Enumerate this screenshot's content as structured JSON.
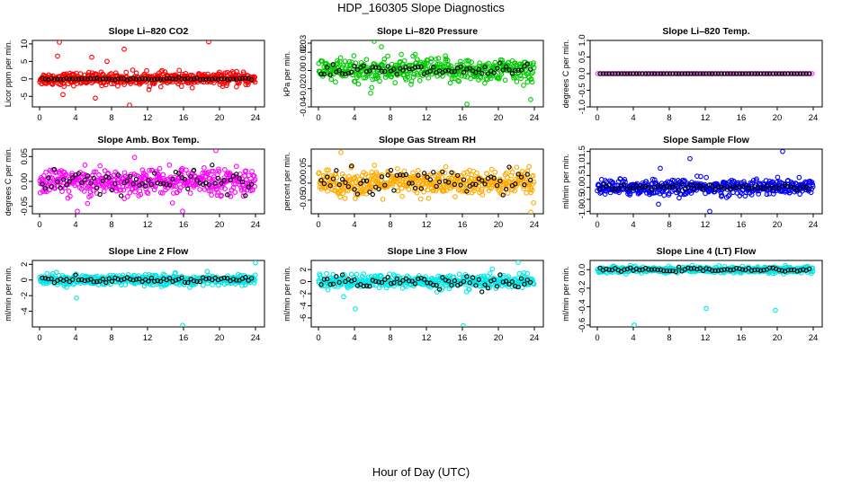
{
  "title": "HDP_160305  Slope Diagnostics",
  "xlabel": "Hour of Day (UTC)",
  "x_ticks": [
    0,
    4,
    8,
    12,
    16,
    20,
    24
  ],
  "chart_data": [
    {
      "type": "scatter",
      "title": "Slope Li–820 CO2",
      "ylabel": "Licor ppm per min.",
      "xlim": [
        0,
        24
      ],
      "ylim": [
        -8,
        11
      ],
      "yticks": [
        -5,
        0,
        5,
        10
      ],
      "ytick_labels": [
        "-5",
        "0",
        "5",
        "10"
      ],
      "color": "#ff0000",
      "spread": 1.6,
      "outliers": [
        [
          2.2,
          10.5
        ],
        [
          2.0,
          6.5
        ],
        [
          9.4,
          8.5
        ],
        [
          18.8,
          10.6
        ],
        [
          5.8,
          6.2
        ],
        [
          7.5,
          5.0
        ],
        [
          10.0,
          -7.5
        ],
        [
          2.6,
          -4.5
        ],
        [
          6.2,
          -5.5
        ]
      ],
      "black_spread": 0.25
    },
    {
      "type": "scatter",
      "title": "Slope Li–820 Pressure",
      "ylabel": "kPa per min.",
      "xlim": [
        0,
        24
      ],
      "ylim": [
        -0.04,
        0.033
      ],
      "yticks": [
        -0.04,
        -0.02,
        0.0,
        0.02,
        0.03
      ],
      "ytick_labels": [
        "-0.04",
        "-0.02",
        "0.00",
        "0.02",
        "0.03"
      ],
      "color": "#00cc00",
      "spread": 0.012,
      "outliers": [
        [
          6.2,
          0.032
        ],
        [
          5.8,
          -0.025
        ],
        [
          16.5,
          -0.037
        ],
        [
          23.6,
          -0.032
        ],
        [
          7.0,
          0.026
        ]
      ],
      "black_spread": 0.006
    },
    {
      "type": "scatter",
      "title": "Slope Li–820 Temp.",
      "ylabel": "degrees C per min.",
      "xlim": [
        0,
        24
      ],
      "ylim": [
        -1,
        1
      ],
      "yticks": [
        -1,
        -0.5,
        0,
        0.5,
        1
      ],
      "ytick_labels": [
        "-1.0",
        "-0.5",
        "0.0",
        "0.5",
        "1.0"
      ],
      "color": "#e040e0",
      "spread": 0.0,
      "outliers": [],
      "black_spread": 0.0
    },
    {
      "type": "scatter",
      "title": "Slope Amb. Box Temp.",
      "ylabel": "degrees C per min.",
      "xlim": [
        0,
        24
      ],
      "ylim": [
        -0.065,
        0.065
      ],
      "yticks": [
        -0.05,
        0.0,
        0.05
      ],
      "ytick_labels": [
        "-0.05",
        "0.00",
        "0.05"
      ],
      "color": "#ff00ff",
      "spread": 0.025,
      "outliers": [
        [
          4.2,
          -0.06
        ],
        [
          15.9,
          -0.06
        ],
        [
          19.6,
          0.062
        ]
      ],
      "black_spread": 0.02
    },
    {
      "type": "scatter",
      "title": "Slope Gas Stream RH",
      "ylabel": "percent per min.",
      "xlim": [
        0,
        24
      ],
      "ylim": [
        -0.09,
        0.1
      ],
      "yticks": [
        -0.05,
        0.0,
        0.05
      ],
      "ytick_labels": [
        "-0.05",
        "0.00",
        "0.05"
      ],
      "color": "#ffaa00",
      "spread": 0.035,
      "outliers": [
        [
          2.5,
          0.09
        ],
        [
          23.6,
          -0.085
        ]
      ],
      "black_spread": 0.03
    },
    {
      "type": "scatter",
      "title": "Slope Sample Flow",
      "ylabel": "ml/min per min.",
      "xlim": [
        0,
        24
      ],
      "ylim": [
        -1.1,
        1.6
      ],
      "yticks": [
        -1.0,
        -0.5,
        0.0,
        0.5,
        1.0,
        1.5
      ],
      "ytick_labels": [
        "-1.0",
        "-0.5",
        "0.0",
        "0.5",
        "1.0",
        "1.5"
      ],
      "color": "#0000ff",
      "spread": 0.3,
      "outliers": [
        [
          10.3,
          1.2
        ],
        [
          7.0,
          0.8
        ],
        [
          12.5,
          -1.0
        ],
        [
          20.6,
          1.5
        ],
        [
          6.8,
          -0.7
        ]
      ],
      "black_spread": 0.12
    },
    {
      "type": "scatter",
      "title": "Slope Line 2 Flow",
      "ylabel": "ml/min per min.",
      "xlim": [
        0,
        24
      ],
      "ylim": [
        -6,
        2.5
      ],
      "yticks": [
        -4,
        -2,
        0,
        2
      ],
      "ytick_labels": [
        "-4",
        "-2",
        "0",
        "2"
      ],
      "color": "#00e5e5",
      "spread": 0.6,
      "outliers": [
        [
          15.9,
          -5.8
        ],
        [
          4.1,
          -2.3
        ],
        [
          24.0,
          2.2
        ]
      ],
      "black_spread": 0.3
    },
    {
      "type": "scatter",
      "title": "Slope Line 3 Flow",
      "ylabel": "ml/min per min.",
      "xlim": [
        0,
        24
      ],
      "ylim": [
        -7.5,
        3.5
      ],
      "yticks": [
        -6,
        -4,
        -2,
        0,
        2
      ],
      "ytick_labels": [
        "-6",
        "-4",
        "-2",
        "0",
        "2"
      ],
      "color": "#00eaea",
      "spread": 1.0,
      "outliers": [
        [
          16.1,
          -7.3
        ],
        [
          4.1,
          -4.5
        ],
        [
          2.8,
          -2.5
        ],
        [
          22.2,
          3.2
        ]
      ],
      "black_spread": 0.9
    },
    {
      "type": "scatter",
      "title": "Slope Line 4 (LT) Flow",
      "ylabel": "ml/min per min.",
      "xlim": [
        0,
        24
      ],
      "ylim": [
        -0.62,
        0.1
      ],
      "yticks": [
        -0.6,
        -0.4,
        -0.2,
        0.0
      ],
      "ytick_labels": [
        "-0.6",
        "-0.4",
        "-0.2",
        "0.0"
      ],
      "color": "#00e5e5",
      "spread": 0.03,
      "outliers": [
        [
          4.1,
          -0.6
        ],
        [
          12.1,
          -0.42
        ],
        [
          19.8,
          -0.44
        ]
      ],
      "black_spread": 0.015
    }
  ]
}
